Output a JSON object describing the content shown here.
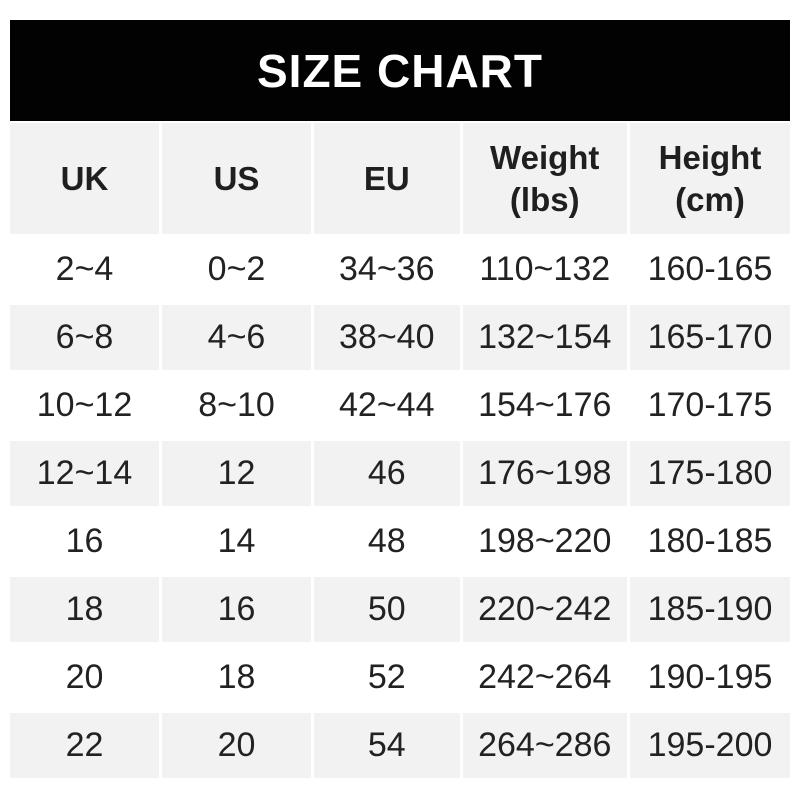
{
  "chart_data": {
    "type": "table",
    "title": "SIZE CHART",
    "columns": [
      {
        "line1": "UK",
        "line2": ""
      },
      {
        "line1": "US",
        "line2": ""
      },
      {
        "line1": "EU",
        "line2": ""
      },
      {
        "line1": "Weight",
        "line2": "(lbs)"
      },
      {
        "line1": "Height",
        "line2": "(cm)"
      }
    ],
    "rows": [
      [
        "2~4",
        "0~2",
        "34~36",
        "110~132",
        "160-165"
      ],
      [
        "6~8",
        "4~6",
        "38~40",
        "132~154",
        "165-170"
      ],
      [
        "10~12",
        "8~10",
        "42~44",
        "154~176",
        "170-175"
      ],
      [
        "12~14",
        "12",
        "46",
        "176~198",
        "175-180"
      ],
      [
        "16",
        "14",
        "48",
        "198~220",
        "180-185"
      ],
      [
        "18",
        "16",
        "50",
        "220~242",
        "185-190"
      ],
      [
        "20",
        "18",
        "52",
        "242~264",
        "190-195"
      ],
      [
        "22",
        "20",
        "54",
        "264~286",
        "195-200"
      ]
    ],
    "layout": {
      "stripe_pattern": "header gray, then white/gray alternating data rows",
      "grid": "white gutters between cells"
    }
  },
  "colors": {
    "banner_bg": "#020202",
    "banner_text": "#ffffff",
    "stripe": "#f2f2f2",
    "text": "#222222"
  }
}
